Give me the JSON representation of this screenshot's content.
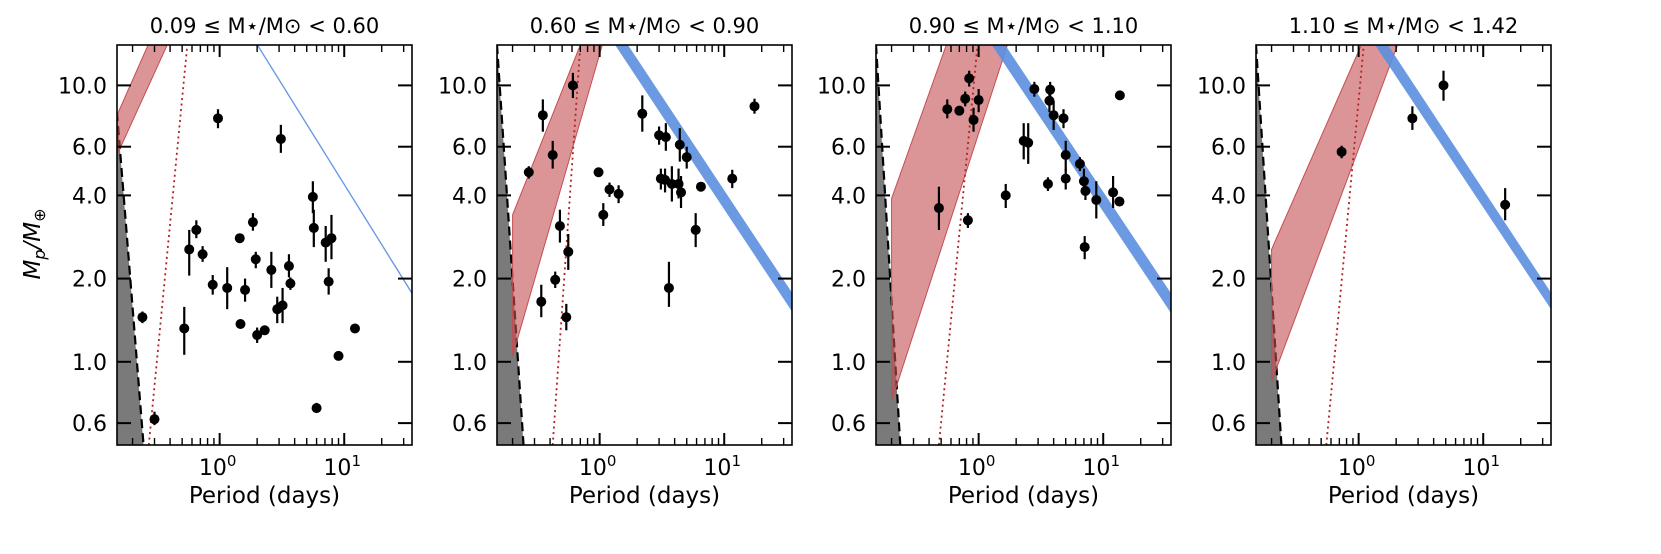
{
  "chart_data": {
    "type": "scatter",
    "ylabel_main": "M",
    "ylabel_sub": "p",
    "ylabel_slash": "/M",
    "ylabel_earth": "⊕",
    "xlabel": "Period (days)",
    "xscale": "log",
    "yscale": "log",
    "xlim": [
      0.15,
      35
    ],
    "ylim": [
      0.5,
      14
    ],
    "x_tick_base": "10",
    "x_ticks": [
      {
        "value": 1,
        "exp": "0"
      },
      {
        "value": 10,
        "exp": "1"
      }
    ],
    "y_ticks": [
      {
        "value": 0.6,
        "label": "0.6"
      },
      {
        "value": 1.0,
        "label": "1.0"
      },
      {
        "value": 2.0,
        "label": "2.0"
      },
      {
        "value": 4.0,
        "label": "4.0"
      },
      {
        "value": 6.0,
        "label": "6.0"
      },
      {
        "value": 10.0,
        "label": "10.0"
      }
    ],
    "colors": {
      "points": "#000000",
      "red_band": "#c44e52",
      "blue_band": "#5b8fe0",
      "gray_region": "#7a7a7a",
      "dotted_line": "#b22222"
    },
    "panels": [
      {
        "title": "0.09 ≤ M⋆/M⊙ < 0.60",
        "red_band": {
          "lower": [
            [
              0.15,
              5.6
            ],
            [
              0.6,
              22
            ]
          ],
          "upper": [
            [
              0.15,
              7.8
            ],
            [
              0.6,
              32
            ]
          ]
        },
        "blue_band": {
          "lower": [
            [
              1.4,
              18
            ],
            [
              35,
              1.75
            ]
          ],
          "upper": [
            [
              1.4,
              18.4
            ],
            [
              35,
              1.79
            ]
          ]
        },
        "gray_edge": [
          [
            0.15,
            8
          ],
          [
            0.245,
            0.5
          ]
        ],
        "dotted": [
          [
            0.27,
            0.5
          ],
          [
            0.55,
            14
          ]
        ],
        "points": [
          {
            "x": 0.24,
            "y": 1.45,
            "lo": 1.38,
            "hi": 1.52
          },
          {
            "x": 0.3,
            "y": 0.62,
            "lo": 0.59,
            "hi": 0.66
          },
          {
            "x": 0.52,
            "y": 1.32,
            "lo": 1.06,
            "hi": 1.58
          },
          {
            "x": 0.57,
            "y": 2.55,
            "lo": 2.05,
            "hi": 3.0
          },
          {
            "x": 0.65,
            "y": 3.0,
            "lo": 2.8,
            "hi": 3.25
          },
          {
            "x": 0.73,
            "y": 2.45,
            "lo": 2.3,
            "hi": 2.62
          },
          {
            "x": 0.88,
            "y": 1.9,
            "lo": 1.75,
            "hi": 2.06
          },
          {
            "x": 0.97,
            "y": 7.6,
            "lo": 7.0,
            "hi": 8.2
          },
          {
            "x": 1.15,
            "y": 1.85,
            "lo": 1.55,
            "hi": 2.2
          },
          {
            "x": 1.45,
            "y": 2.8,
            "lo": 2.72,
            "hi": 2.88
          },
          {
            "x": 1.47,
            "y": 1.37,
            "lo": 1.32,
            "hi": 1.42
          },
          {
            "x": 1.6,
            "y": 1.82,
            "lo": 1.65,
            "hi": 2.0
          },
          {
            "x": 1.85,
            "y": 3.2,
            "lo": 2.98,
            "hi": 3.45
          },
          {
            "x": 1.95,
            "y": 2.35,
            "lo": 2.18,
            "hi": 2.5
          },
          {
            "x": 2.0,
            "y": 1.25,
            "lo": 1.17,
            "hi": 1.33
          },
          {
            "x": 2.3,
            "y": 1.3,
            "lo": 1.26,
            "hi": 1.34
          },
          {
            "x": 2.6,
            "y": 2.15,
            "lo": 1.85,
            "hi": 2.5
          },
          {
            "x": 2.9,
            "y": 1.55,
            "lo": 1.38,
            "hi": 1.72
          },
          {
            "x": 3.1,
            "y": 6.4,
            "lo": 5.7,
            "hi": 7.2
          },
          {
            "x": 3.2,
            "y": 1.6,
            "lo": 1.38,
            "hi": 1.85
          },
          {
            "x": 3.6,
            "y": 2.22,
            "lo": 2.02,
            "hi": 2.45
          },
          {
            "x": 3.7,
            "y": 1.92,
            "lo": 1.82,
            "hi": 2.02
          },
          {
            "x": 5.6,
            "y": 3.95,
            "lo": 3.45,
            "hi": 4.5
          },
          {
            "x": 5.7,
            "y": 3.05,
            "lo": 2.6,
            "hi": 3.55
          },
          {
            "x": 6.0,
            "y": 0.68,
            "lo": 0.66,
            "hi": 0.71
          },
          {
            "x": 7.1,
            "y": 2.7,
            "lo": 2.3,
            "hi": 3.1
          },
          {
            "x": 7.5,
            "y": 1.95,
            "lo": 1.75,
            "hi": 2.18
          },
          {
            "x": 7.9,
            "y": 2.8,
            "lo": 2.35,
            "hi": 3.4
          },
          {
            "x": 9.0,
            "y": 1.05,
            "lo": 1.02,
            "hi": 1.08
          },
          {
            "x": 12.2,
            "y": 1.32,
            "lo": 1.29,
            "hi": 1.35
          }
        ]
      },
      {
        "title": "0.60 ≤ M⋆/M⊙ < 0.90",
        "red_band": {
          "lower": [
            [
              0.2,
              1.05
            ],
            [
              1.05,
              14
            ]
          ],
          "upper": [
            [
              0.2,
              3.4
            ],
            [
              0.7,
              14
            ]
          ]
        },
        "blue_band": {
          "lower": [
            [
              1.0,
              17
            ],
            [
              35,
              1.52
            ]
          ],
          "upper": [
            [
              1.0,
              20
            ],
            [
              35,
              1.78
            ]
          ]
        },
        "gray_edge": [
          [
            0.15,
            14
          ],
          [
            0.245,
            0.5
          ]
        ],
        "dotted": [
          [
            0.42,
            0.5
          ],
          [
            0.7,
            14
          ]
        ],
        "points": [
          {
            "x": 0.27,
            "y": 4.85,
            "lo": 4.6,
            "hi": 5.1
          },
          {
            "x": 0.34,
            "y": 1.65,
            "lo": 1.45,
            "hi": 1.9
          },
          {
            "x": 0.35,
            "y": 7.8,
            "lo": 6.8,
            "hi": 8.9
          },
          {
            "x": 0.42,
            "y": 5.6,
            "lo": 5.0,
            "hi": 6.3
          },
          {
            "x": 0.44,
            "y": 1.98,
            "lo": 1.85,
            "hi": 2.12
          },
          {
            "x": 0.48,
            "y": 3.1,
            "lo": 2.7,
            "hi": 3.55
          },
          {
            "x": 0.54,
            "y": 1.45,
            "lo": 1.3,
            "hi": 1.62
          },
          {
            "x": 0.56,
            "y": 2.5,
            "lo": 2.15,
            "hi": 2.9
          },
          {
            "x": 0.61,
            "y": 10.0,
            "lo": 9.0,
            "hi": 11.1
          },
          {
            "x": 0.98,
            "y": 4.85,
            "lo": 4.75,
            "hi": 4.95
          },
          {
            "x": 1.07,
            "y": 3.4,
            "lo": 3.1,
            "hi": 3.75
          },
          {
            "x": 1.2,
            "y": 4.2,
            "lo": 3.95,
            "hi": 4.45
          },
          {
            "x": 1.42,
            "y": 4.05,
            "lo": 3.75,
            "hi": 4.35
          },
          {
            "x": 2.2,
            "y": 7.9,
            "lo": 6.8,
            "hi": 9.2
          },
          {
            "x": 3.0,
            "y": 6.6,
            "lo": 6.1,
            "hi": 7.1
          },
          {
            "x": 3.1,
            "y": 4.6,
            "lo": 4.2,
            "hi": 5.0
          },
          {
            "x": 3.35,
            "y": 4.55,
            "lo": 4.1,
            "hi": 5.0
          },
          {
            "x": 3.4,
            "y": 6.5,
            "lo": 5.8,
            "hi": 7.3
          },
          {
            "x": 3.6,
            "y": 1.85,
            "lo": 1.58,
            "hi": 2.3
          },
          {
            "x": 3.8,
            "y": 4.4,
            "lo": 3.8,
            "hi": 5.1
          },
          {
            "x": 4.3,
            "y": 4.4,
            "lo": 3.9,
            "hi": 5.0
          },
          {
            "x": 4.4,
            "y": 6.1,
            "lo": 5.3,
            "hi": 7.0
          },
          {
            "x": 4.5,
            "y": 4.1,
            "lo": 3.6,
            "hi": 4.7
          },
          {
            "x": 5.0,
            "y": 5.5,
            "lo": 5.0,
            "hi": 6.0
          },
          {
            "x": 5.9,
            "y": 3.0,
            "lo": 2.6,
            "hi": 3.45
          },
          {
            "x": 6.5,
            "y": 4.3,
            "lo": 4.15,
            "hi": 4.45
          },
          {
            "x": 11.6,
            "y": 4.6,
            "lo": 4.25,
            "hi": 4.95
          },
          {
            "x": 17.5,
            "y": 8.4,
            "lo": 7.9,
            "hi": 8.95
          }
        ]
      },
      {
        "title": "0.90 ≤ M⋆/M⊙ < 1.10",
        "red_band": {
          "lower": [
            [
              0.2,
              0.72
            ],
            [
              1.7,
              14
            ]
          ],
          "upper": [
            [
              0.2,
              3.9
            ],
            [
              0.55,
              14
            ]
          ]
        },
        "blue_band": {
          "lower": [
            [
              1.0,
              16.5
            ],
            [
              35,
              1.5
            ]
          ],
          "upper": [
            [
              1.0,
              19.5
            ],
            [
              35,
              1.77
            ]
          ]
        },
        "gray_edge": [
          [
            0.15,
            14
          ],
          [
            0.235,
            0.5
          ]
        ],
        "dotted": [
          [
            0.48,
            0.5
          ],
          [
            0.98,
            14
          ]
        ],
        "points": [
          {
            "x": 0.48,
            "y": 3.6,
            "lo": 3.0,
            "hi": 4.3
          },
          {
            "x": 0.56,
            "y": 8.2,
            "lo": 7.6,
            "hi": 8.9
          },
          {
            "x": 0.7,
            "y": 8.1,
            "lo": 7.8,
            "hi": 8.4
          },
          {
            "x": 0.78,
            "y": 8.95,
            "lo": 8.4,
            "hi": 9.5
          },
          {
            "x": 0.82,
            "y": 3.25,
            "lo": 3.05,
            "hi": 3.45
          },
          {
            "x": 0.84,
            "y": 10.6,
            "lo": 9.9,
            "hi": 11.3
          },
          {
            "x": 0.91,
            "y": 7.5,
            "lo": 6.8,
            "hi": 8.3
          },
          {
            "x": 1.0,
            "y": 8.85,
            "lo": 8.0,
            "hi": 9.7
          },
          {
            "x": 1.65,
            "y": 4.0,
            "lo": 3.6,
            "hi": 4.4
          },
          {
            "x": 2.3,
            "y": 6.3,
            "lo": 5.4,
            "hi": 7.3
          },
          {
            "x": 2.5,
            "y": 6.2,
            "lo": 5.2,
            "hi": 7.3
          },
          {
            "x": 2.8,
            "y": 9.7,
            "lo": 9.1,
            "hi": 10.3
          },
          {
            "x": 3.6,
            "y": 4.4,
            "lo": 4.15,
            "hi": 4.65
          },
          {
            "x": 3.7,
            "y": 8.8,
            "lo": 8.0,
            "hi": 9.6
          },
          {
            "x": 3.75,
            "y": 9.65,
            "lo": 9.0,
            "hi": 10.3
          },
          {
            "x": 4.0,
            "y": 7.8,
            "lo": 6.9,
            "hi": 8.8
          },
          {
            "x": 4.8,
            "y": 7.6,
            "lo": 7.0,
            "hi": 8.2
          },
          {
            "x": 5.0,
            "y": 4.6,
            "lo": 4.2,
            "hi": 5.0
          },
          {
            "x": 5.0,
            "y": 5.6,
            "lo": 4.9,
            "hi": 6.3
          },
          {
            "x": 6.5,
            "y": 5.2,
            "lo": 4.9,
            "hi": 5.5
          },
          {
            "x": 7.0,
            "y": 4.5,
            "lo": 4.0,
            "hi": 5.0
          },
          {
            "x": 7.2,
            "y": 4.15,
            "lo": 3.85,
            "hi": 4.45
          },
          {
            "x": 7.1,
            "y": 2.6,
            "lo": 2.35,
            "hi": 2.85
          },
          {
            "x": 8.8,
            "y": 3.85,
            "lo": 3.3,
            "hi": 4.5
          },
          {
            "x": 12.0,
            "y": 4.1,
            "lo": 3.6,
            "hi": 4.7
          },
          {
            "x": 13.5,
            "y": 3.8,
            "lo": 3.7,
            "hi": 3.9
          },
          {
            "x": 13.6,
            "y": 9.2,
            "lo": 9.05,
            "hi": 9.35
          }
        ]
      },
      {
        "title": "1.10 ≤ M⋆/M⊙ < 1.42",
        "red_band": {
          "lower": [
            [
              0.2,
              0.85
            ],
            [
              2.05,
              14
            ]
          ],
          "upper": [
            [
              0.2,
              2.55
            ],
            [
              1.05,
              14
            ]
          ]
        },
        "blue_band": {
          "lower": [
            [
              1.2,
              15.2
            ],
            [
              35,
              1.55
            ]
          ],
          "upper": [
            [
              1.2,
              17.9
            ],
            [
              35,
              1.78
            ]
          ]
        },
        "gray_edge": [
          [
            0.15,
            14
          ],
          [
            0.24,
            0.5
          ]
        ],
        "dotted": [
          [
            0.55,
            0.5
          ],
          [
            1.1,
            14
          ]
        ],
        "points": [
          {
            "x": 0.73,
            "y": 5.75,
            "lo": 5.45,
            "hi": 6.05
          },
          {
            "x": 2.7,
            "y": 7.6,
            "lo": 6.9,
            "hi": 8.4
          },
          {
            "x": 4.8,
            "y": 10.0,
            "lo": 8.8,
            "hi": 11.3
          },
          {
            "x": 15.0,
            "y": 3.7,
            "lo": 3.25,
            "hi": 4.25
          }
        ]
      }
    ]
  }
}
